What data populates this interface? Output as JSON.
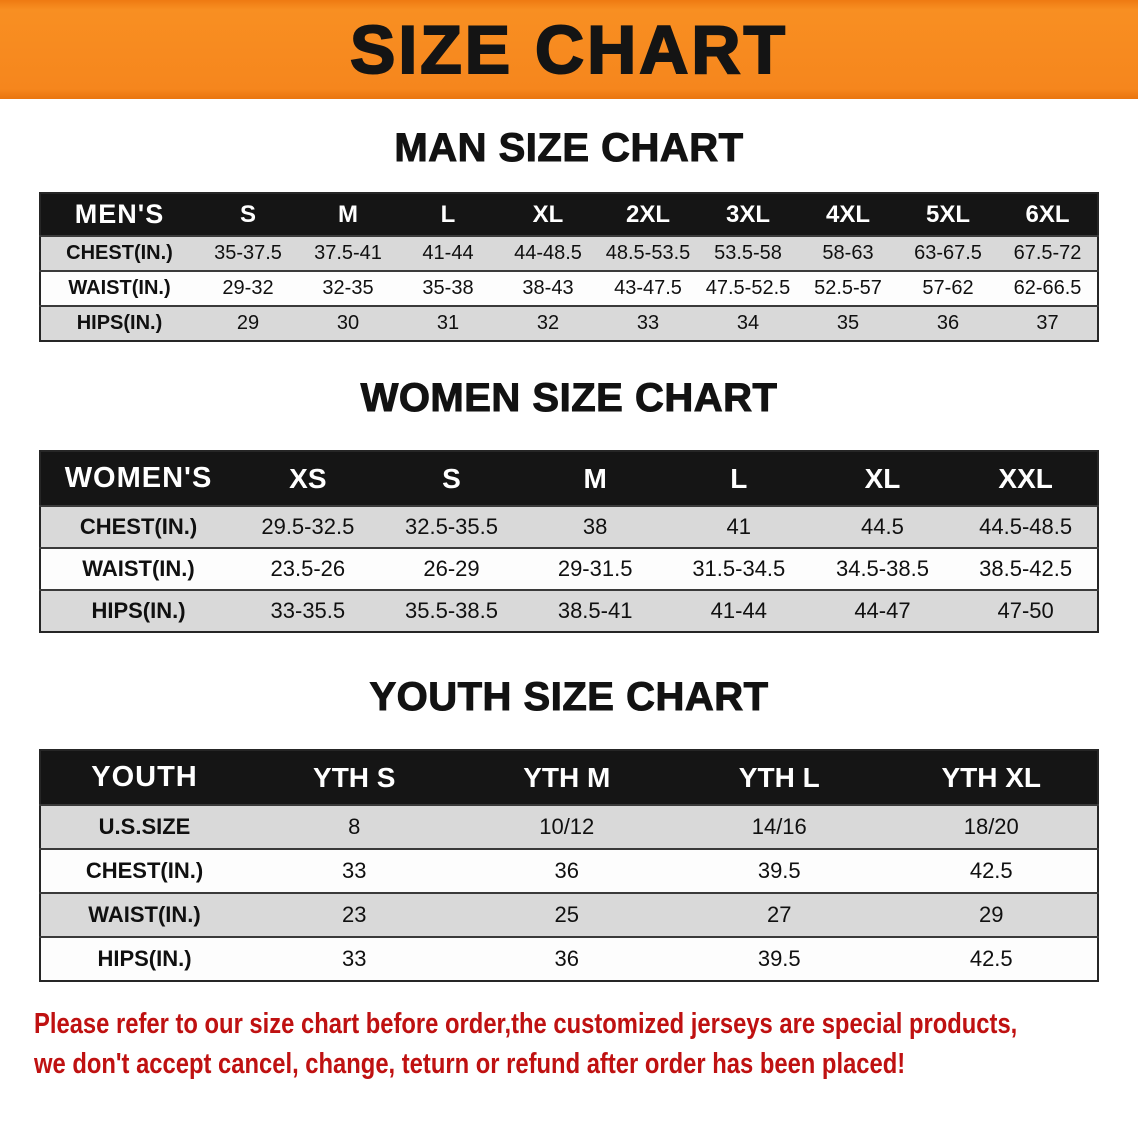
{
  "banner": {
    "title": "SIZE CHART",
    "bg_color": "#f6861d",
    "text_color": "#141414"
  },
  "sections": {
    "men": {
      "heading": "MAN SIZE CHART"
    },
    "women": {
      "heading": "WOMEN SIZE CHART"
    },
    "youth": {
      "heading": "YOUTH SIZE CHART"
    }
  },
  "tables": {
    "men": {
      "header": [
        "MEN'S",
        "S",
        "M",
        "L",
        "XL",
        "2XL",
        "3XL",
        "4XL",
        "5XL",
        "6XL"
      ],
      "rows": [
        {
          "label": "CHEST(IN.)",
          "values": [
            "35-37.5",
            "37.5-41",
            "41-44",
            "44-48.5",
            "48.5-53.5",
            "53.5-58",
            "58-63",
            "63-67.5",
            "67.5-72"
          ]
        },
        {
          "label": "WAIST(IN.)",
          "values": [
            "29-32",
            "32-35",
            "35-38",
            "38-43",
            "43-47.5",
            "47.5-52.5",
            "52.5-57",
            "57-62",
            "62-66.5"
          ]
        },
        {
          "label": "HIPS(IN.)",
          "values": [
            "29",
            "30",
            "31",
            "32",
            "33",
            "34",
            "35",
            "36",
            "37"
          ]
        }
      ]
    },
    "women": {
      "header": [
        "WOMEN'S",
        "XS",
        "S",
        "M",
        "L",
        "XL",
        "XXL"
      ],
      "rows": [
        {
          "label": "CHEST(IN.)",
          "values": [
            "29.5-32.5",
            "32.5-35.5",
            "38",
            "41",
            "44.5",
            "44.5-48.5"
          ]
        },
        {
          "label": "WAIST(IN.)",
          "values": [
            "23.5-26",
            "26-29",
            "29-31.5",
            "31.5-34.5",
            "34.5-38.5",
            "38.5-42.5"
          ]
        },
        {
          "label": "HIPS(IN.)",
          "values": [
            "33-35.5",
            "35.5-38.5",
            "38.5-41",
            "41-44",
            "44-47",
            "47-50"
          ]
        }
      ]
    },
    "youth": {
      "header": [
        "YOUTH",
        "YTH S",
        "YTH M",
        "YTH L",
        "YTH XL"
      ],
      "rows": [
        {
          "label": "U.S.SIZE",
          "values": [
            "8",
            "10/12",
            "14/16",
            "18/20"
          ]
        },
        {
          "label": "CHEST(IN.)",
          "values": [
            "33",
            "36",
            "39.5",
            "42.5"
          ]
        },
        {
          "label": "WAIST(IN.)",
          "values": [
            "23",
            "25",
            "27",
            "29"
          ]
        },
        {
          "label": "HIPS(IN.)",
          "values": [
            "33",
            "36",
            "39.5",
            "42.5"
          ]
        }
      ]
    }
  },
  "disclaimer": {
    "line1": "Please refer to our size chart before order,the customized jerseys are special products,",
    "line2": "we don't accept cancel, change, teturn or refund after order has been placed!",
    "color": "#bf1111"
  }
}
